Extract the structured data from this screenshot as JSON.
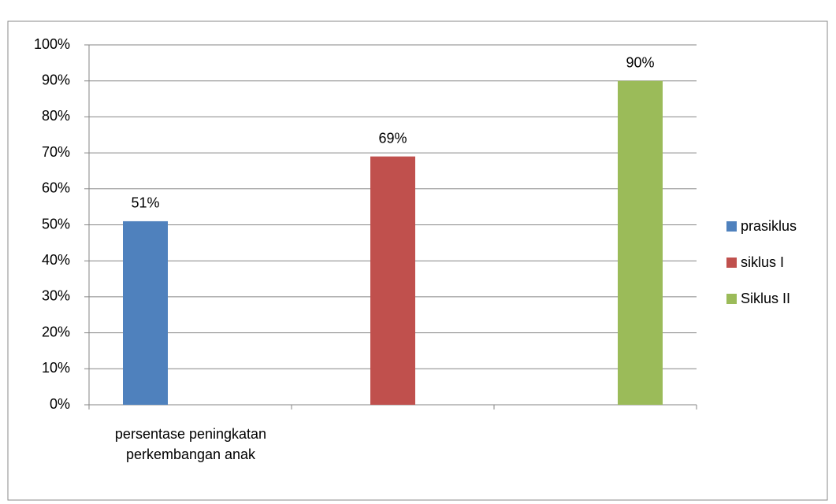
{
  "chart_data": {
    "type": "bar",
    "categories": [
      "persentase peningkatan perkembangan anak",
      null,
      null
    ],
    "series": [
      {
        "name": "prasiklus",
        "color": "#4f81bd",
        "values": [
          51,
          null,
          null
        ],
        "value_labels": [
          "51%",
          null,
          null
        ]
      },
      {
        "name": "siklus I",
        "color": "#c0504d",
        "values": [
          null,
          69,
          null
        ],
        "value_labels": [
          null,
          "69%",
          null
        ]
      },
      {
        "name": "Siklus II",
        "color": "#9bbb59",
        "values": [
          null,
          null,
          90
        ],
        "value_labels": [
          null,
          null,
          "90%"
        ]
      }
    ],
    "ylim": [
      0,
      100
    ],
    "yticks": [
      {
        "value": 0,
        "label": "0%"
      },
      {
        "value": 10,
        "label": "10%"
      },
      {
        "value": 20,
        "label": "20%"
      },
      {
        "value": 30,
        "label": "30%"
      },
      {
        "value": 40,
        "label": "40%"
      },
      {
        "value": 50,
        "label": "50%"
      },
      {
        "value": 60,
        "label": "60%"
      },
      {
        "value": 70,
        "label": "70%"
      },
      {
        "value": 80,
        "label": "80%"
      },
      {
        "value": 90,
        "label": "90%"
      },
      {
        "value": 100,
        "label": "100%"
      }
    ],
    "grid": true,
    "legend": "right"
  }
}
